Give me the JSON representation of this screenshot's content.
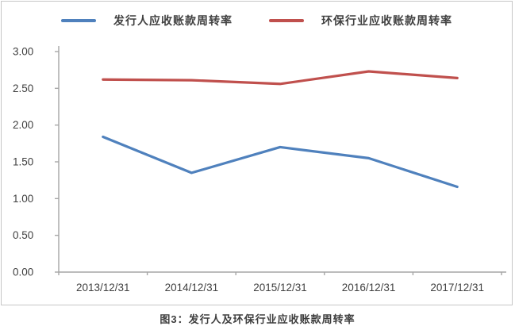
{
  "caption": "图3：发行人及环保行业应收账款周转率",
  "colors": {
    "axis": "#a6a6a6",
    "text": "#404040",
    "border": "#c6c6c6",
    "series_blue": "#4f81bd",
    "series_red": "#c0504d"
  },
  "chart_data": {
    "type": "line",
    "title": "",
    "xlabel": "",
    "ylabel": "",
    "grid": false,
    "legend_position": "top",
    "categories": [
      "2013/12/31",
      "2014/12/31",
      "2015/12/31",
      "2016/12/31",
      "2017/12/31"
    ],
    "series": [
      {
        "name": "发行人应收账款周转率",
        "color": "#4f81bd",
        "values": [
          1.84,
          1.35,
          1.7,
          1.55,
          1.16
        ]
      },
      {
        "name": "环保行业应收账款周转率",
        "color": "#c0504d",
        "values": [
          2.62,
          2.61,
          2.56,
          2.73,
          2.64
        ]
      }
    ],
    "ylim": [
      0.0,
      3.0
    ],
    "ytick_step": 0.5,
    "ytick_labels": [
      "0.00",
      "0.50",
      "1.00",
      "1.50",
      "2.00",
      "2.50",
      "3.00"
    ]
  }
}
